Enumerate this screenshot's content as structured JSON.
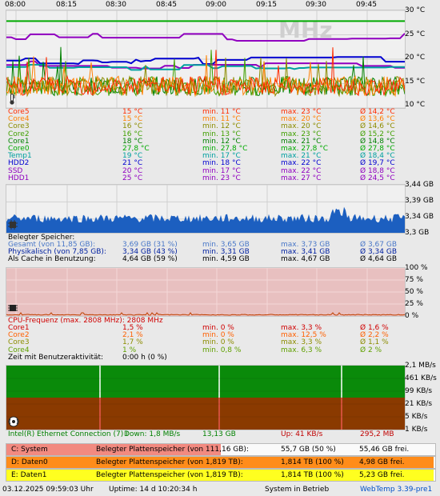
{
  "colors": {
    "core5": "#ff2b00",
    "core4": "#ff8000",
    "core3": "#8c8c00",
    "core2": "#40a000",
    "core1": "#008000",
    "core0": "#00aa00",
    "temp1": "#00a0a0",
    "hdd2": "#0000d0",
    "ssd": "#9000c0",
    "hdd1": "#9000c0",
    "ram": "#1c5fc0",
    "cpu_bg": "#e8c0c0",
    "net_down": "#0a8a0a",
    "net_up": "#8a3a00"
  },
  "time_axis": [
    "08:00",
    "08:15",
    "08:30",
    "08:45",
    "09:00",
    "09:15",
    "09:30",
    "09:45"
  ],
  "temp": {
    "watermark": "MHz",
    "axis": [
      "30 °C",
      "25 °C",
      "20 °C",
      "15 °C",
      "10 °C"
    ],
    "icon": "thermometer-icon",
    "rows": [
      {
        "name": "Core5",
        "cur": "15 °C",
        "min": "min. 11 °C",
        "max": "max. 23 °C",
        "avg": "Ø 14,2 °C",
        "color": "#ff2b00"
      },
      {
        "name": "Core4",
        "cur": "15 °C",
        "min": "min. 11 °C",
        "max": "max. 20 °C",
        "avg": "Ø 13,6 °C",
        "color": "#ff8000"
      },
      {
        "name": "Core3",
        "cur": "16 °C",
        "min": "min. 12 °C",
        "max": "max. 20 °C",
        "avg": "Ø 14,6 °C",
        "color": "#8c8c00"
      },
      {
        "name": "Core2",
        "cur": "16 °C",
        "min": "min. 13 °C",
        "max": "max. 23 °C",
        "avg": "Ø 15,2 °C",
        "color": "#40a000"
      },
      {
        "name": "Core1",
        "cur": "18 °C",
        "min": "min. 12 °C",
        "max": "max. 21 °C",
        "avg": "Ø 14,8 °C",
        "color": "#008000"
      },
      {
        "name": "Core0",
        "cur": "27,8 °C",
        "min": "min. 27,8 °C",
        "max": "max. 27,8 °C",
        "avg": "Ø 27,8 °C",
        "color": "#00aa00"
      },
      {
        "name": "Temp1",
        "cur": "19 °C",
        "min": "min. 17 °C",
        "max": "max. 21 °C",
        "avg": "Ø 18,4 °C",
        "color": "#00a0a0"
      },
      {
        "name": "HDD2",
        "cur": "21 °C",
        "min": "min. 18 °C",
        "max": "max. 22 °C",
        "avg": "Ø 19,7 °C",
        "color": "#0000d0"
      },
      {
        "name": "SSD",
        "cur": "20 °C",
        "min": "min. 17 °C",
        "max": "max. 22 °C",
        "avg": "Ø 18,8 °C",
        "color": "#9000c0"
      },
      {
        "name": "HDD1",
        "cur": "25 °C",
        "min": "min. 23 °C",
        "max": "max. 27 °C",
        "avg": "Ø 24,5 °C",
        "color": "#9000c0"
      }
    ]
  },
  "ram": {
    "axis": [
      "3,44 GB",
      "3,39 GB",
      "3,34 GB",
      "3,3 GB"
    ],
    "icon": "memory-chip-icon",
    "title": "Belegter Speicher:",
    "rows": [
      {
        "name": "Gesamt (von 11,85 GB):",
        "cur": "3,69 GB (31 %)",
        "min": "min. 3,65 GB",
        "max": "max. 3,73 GB",
        "avg": "Ø 3,67 GB",
        "color": "#4a78c8"
      },
      {
        "name": "Physikalisch (von 7,85 GB):",
        "cur": "3,34 GB (43 %)",
        "min": "min. 3,31 GB",
        "max": "max. 3,41 GB",
        "avg": "Ø 3,34 GB",
        "color": "#0020a0"
      },
      {
        "name": "Als Cache in Benutzung:",
        "cur": "4,64 GB (59 %)",
        "min": "min. 4,59 GB",
        "max": "max. 4,67 GB",
        "avg": "Ø 4,64 GB",
        "color": "#000000"
      }
    ]
  },
  "cpu": {
    "axis": [
      "100 %",
      "75 %",
      "50 %",
      "25 %",
      "0 %"
    ],
    "icon": "cpu-icon",
    "title": "CPU-Frequenz (max. 2808 MHz): 2808 MHz",
    "rows": [
      {
        "name": "Core1",
        "cur": "1,5 %",
        "min": "min. 0 %",
        "max": "max. 3,3 %",
        "avg": "Ø 1,6 %",
        "color": "#d00000"
      },
      {
        "name": "Core2",
        "cur": "2,1 %",
        "min": "min. 0 %",
        "max": "max. 12,5 %",
        "avg": "Ø 2,2 %",
        "color": "#ff6000"
      },
      {
        "name": "Core3",
        "cur": "1,7 %",
        "min": "min. 0 %",
        "max": "max. 3,3 %",
        "avg": "Ø 1,1 %",
        "color": "#8c8c00"
      },
      {
        "name": "Core4",
        "cur": "1 %",
        "min": "min. 0,8 %",
        "max": "max. 6,3 %",
        "avg": "Ø 2 %",
        "color": "#60a000"
      }
    ],
    "activity_label": "Zeit mit Benutzeraktivität:",
    "activity_value": "0:00 h (0 %)"
  },
  "net": {
    "axis": [
      "2,1 MB/s",
      "461 KB/s",
      "99 KB/s",
      "21 KB/s",
      "5 KB/s",
      "1 KB/s"
    ],
    "icon": "network-icon",
    "adapter": "Intel(R) Ethernet Connection (7) I",
    "down": "Down: 1,8 MB/s",
    "down_total": "13,13 GB",
    "up": "Up: 41 KB/s",
    "up_total": "295,2 MB"
  },
  "drives": [
    {
      "name": "C: System",
      "label": "Belegter Plattenspeicher (von 111,16 GB):",
      "used": "55,7 GB (50 %)",
      "free": "55,46 GB frei.",
      "color": "#f28a80",
      "fill": 0.5
    },
    {
      "name": "D: Daten0",
      "label": "Belegter Plattenspeicher (von 1,819 TB):",
      "used": "1,814 TB (100 %)",
      "free": "4,98 GB frei.",
      "color": "#ff8c1a",
      "fill": 0.997
    },
    {
      "name": "E: Daten1",
      "label": "Belegter Plattenspeicher (von 1,819 TB):",
      "used": "1,814 TB (100 %)",
      "free": "5,23 GB frei.",
      "color": "#ffff20",
      "fill": 0.997
    }
  ],
  "status": {
    "datetime": "03.12.2025 09:59:03 Uhr",
    "uptime": "Uptime: 14 d 10:20:34 h",
    "state": "System in Betrieb",
    "version": "WebTemp 3.39-pre1"
  }
}
